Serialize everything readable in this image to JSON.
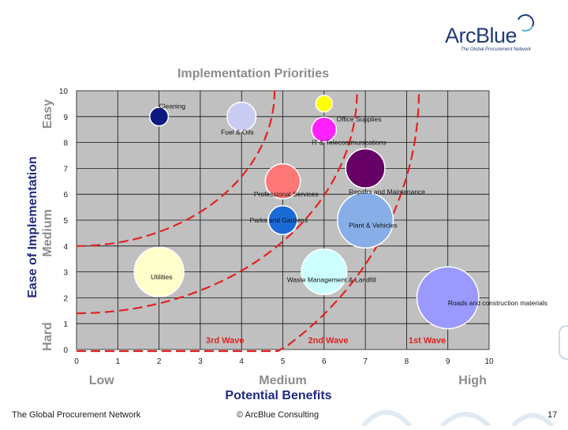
{
  "brand": {
    "name": "ArcBlue",
    "tagline": "The Global Procurement Network"
  },
  "footer": {
    "left": "The Global Procurement Network",
    "center": "© ArcBlue Consulting",
    "page_number": "17"
  },
  "chart_data": {
    "type": "scatter",
    "title": "Implementation Priorities",
    "xlabel": "Potential Benefits",
    "ylabel": "Ease of Implementation",
    "xlim": [
      0,
      10
    ],
    "ylim": [
      0,
      10
    ],
    "x_ticks": [
      0,
      1,
      2,
      3,
      4,
      5,
      6,
      7,
      8,
      9,
      10
    ],
    "y_ticks": [
      0,
      1,
      2,
      3,
      4,
      5,
      6,
      7,
      8,
      9,
      10
    ],
    "grid": true,
    "x_category_labels": [
      "Low",
      "Medium",
      "High"
    ],
    "y_category_labels": [
      "Hard",
      "Medium",
      "Easy"
    ],
    "series": [
      {
        "name": "Cleaning",
        "x": 2,
        "y": 9,
        "size": 0.45,
        "color": "#0b1a80"
      },
      {
        "name": "Fuel & Oils",
        "x": 4,
        "y": 9,
        "size": 0.7,
        "color": "#c9ccf2"
      },
      {
        "name": "Office Supplies",
        "x": 6,
        "y": 9.5,
        "size": 0.4,
        "color": "#ffff00"
      },
      {
        "name": "IT & Telecommunications",
        "x": 6,
        "y": 8.5,
        "size": 0.6,
        "color": "#ff22ff"
      },
      {
        "name": "Repairs and Maintenance",
        "x": 7,
        "y": 7,
        "size": 0.95,
        "color": "#660066"
      },
      {
        "name": "Professional Services",
        "x": 5,
        "y": 6.5,
        "size": 0.85,
        "color": "#ff7777"
      },
      {
        "name": "Parks and Gardens",
        "x": 5,
        "y": 5,
        "size": 0.7,
        "color": "#1a6ad6"
      },
      {
        "name": "Plant & Vehicles",
        "x": 7,
        "y": 5,
        "size": 1.35,
        "color": "#88aee8"
      },
      {
        "name": "Utilities",
        "x": 2,
        "y": 3,
        "size": 1.2,
        "color": "#ffffcc"
      },
      {
        "name": "Waste Management & Landfill",
        "x": 6,
        "y": 3,
        "size": 1.1,
        "color": "#ccffff"
      },
      {
        "name": "Roads and construction materials",
        "x": 9,
        "y": 2,
        "size": 1.5,
        "color": "#9999ff"
      }
    ],
    "waves": [
      {
        "label": "3rd Wave",
        "radius_x": 4.8,
        "radius_y": 6.0,
        "label_x": 3.6,
        "label_y": 0.3
      },
      {
        "label": "2nd Wave",
        "radius_x": 6.8,
        "radius_y": 8.6,
        "label_x": 6.1,
        "label_y": 0.3
      },
      {
        "label": "1st Wave",
        "radius_x": 8.3,
        "radius_y": 12.5,
        "label_x": 8.5,
        "label_y": 0.3
      }
    ],
    "wave_color": "#e22222",
    "plot_background": "#c0c0c0",
    "title_color": "#8c8c8c",
    "axis_title_color": "#1f2a80",
    "category_label_color": "#8c8c8c"
  }
}
